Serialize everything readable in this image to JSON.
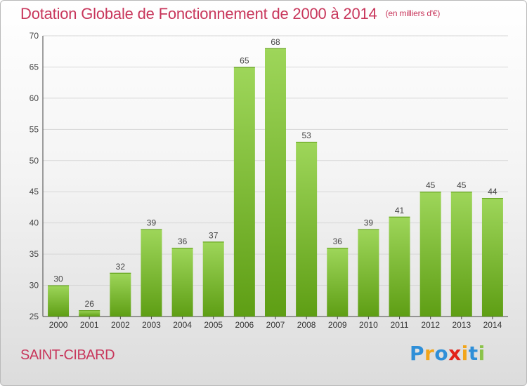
{
  "chart_data": {
    "type": "bar",
    "title": "Dotation Globale de Fonctionnement de 2000 à 2014",
    "unit_note": "(en milliers d'€)",
    "xlabel": "",
    "ylabel": "",
    "categories": [
      "2000",
      "2001",
      "2002",
      "2003",
      "2004",
      "2005",
      "2006",
      "2007",
      "2008",
      "2009",
      "2010",
      "2011",
      "2012",
      "2013",
      "2014"
    ],
    "values": [
      30,
      26,
      32,
      39,
      36,
      37,
      65,
      68,
      53,
      36,
      39,
      41,
      45,
      45,
      44
    ],
    "ylim": [
      25,
      70
    ],
    "yticks": [
      25,
      30,
      35,
      40,
      45,
      50,
      55,
      60,
      65,
      70
    ],
    "grid": true,
    "bar_color": "#7cbd2e"
  },
  "commune": "SAINT-CIBARD",
  "logo": {
    "letters": [
      "P",
      "r",
      "o",
      "x",
      "i",
      "t",
      "i"
    ],
    "colors": [
      "#2f8fd8",
      "#f2a51a",
      "#2f8fd8",
      "#e2231a",
      "#f2a51a",
      "#2f8fd8",
      "#8bc34a"
    ]
  }
}
